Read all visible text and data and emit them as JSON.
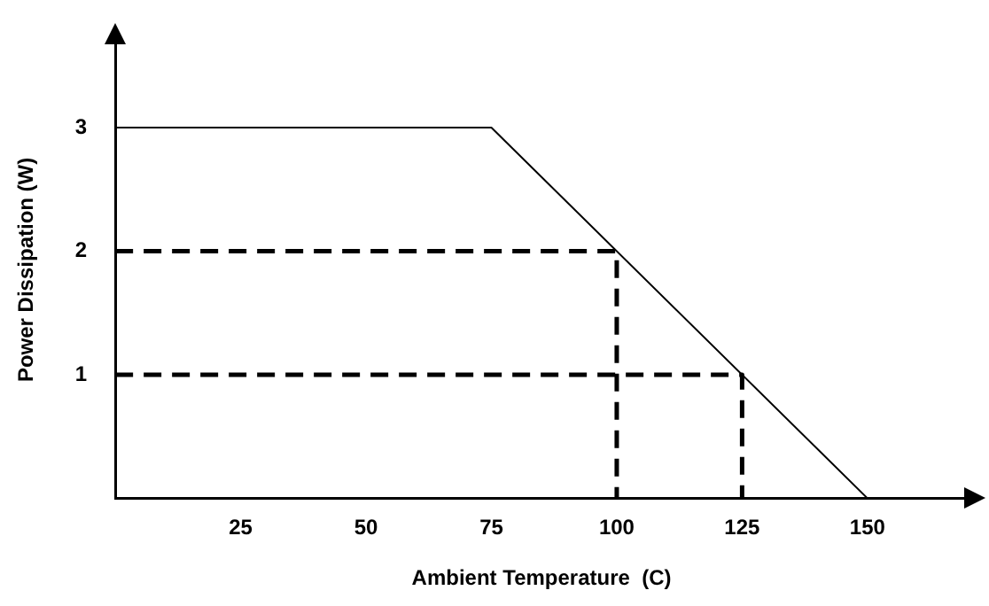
{
  "chart_data": {
    "type": "line",
    "xlabel": "Ambient Temperature  (C)",
    "ylabel": "Power Dissipation (W)",
    "xlim": [
      0,
      170
    ],
    "xticks": [
      25,
      50,
      75,
      100,
      125,
      150
    ],
    "ylim": [
      0,
      3.7
    ],
    "yticks": [
      1,
      2,
      3
    ],
    "grid": false,
    "legend": false,
    "marker": "none",
    "series": [
      {
        "x": [
          0,
          75,
          150
        ],
        "values": [
          3,
          3,
          0
        ],
        "color": "#000000",
        "line_style": "solid"
      },
      {
        "x": [
          0,
          100,
          100
        ],
        "values": [
          2,
          2,
          0
        ],
        "color": "#000000",
        "line_style": "dashed"
      },
      {
        "x": [
          0,
          125,
          125
        ],
        "values": [
          1,
          1,
          0
        ],
        "color": "#000000",
        "line_style": "dashed"
      }
    ]
  }
}
